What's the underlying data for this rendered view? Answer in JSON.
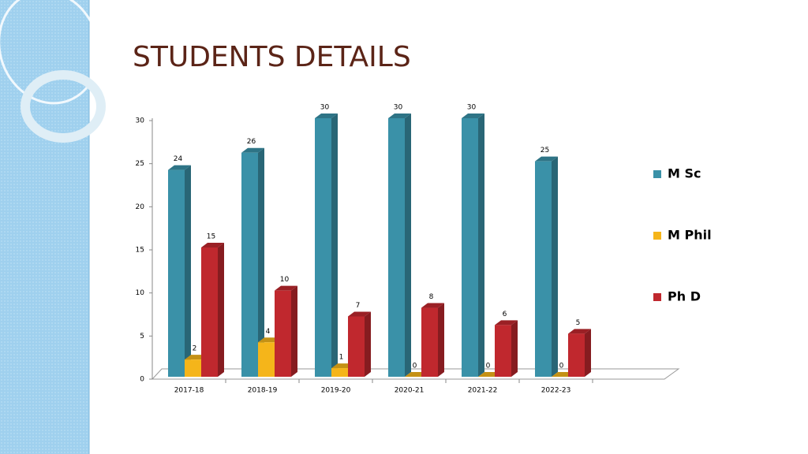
{
  "chart_data": {
    "type": "bar",
    "title": "STUDENTS DETAILS",
    "categories": [
      "2017-18",
      "2018-19",
      "2019-20",
      "2020-21",
      "2021-22",
      "2022-23"
    ],
    "series": [
      {
        "name": "M Sc",
        "color": "#3a91a8",
        "values": [
          24,
          26,
          30,
          30,
          30,
          25
        ]
      },
      {
        "name": "M Phil",
        "color": "#f5b51a",
        "values": [
          2,
          4,
          1,
          0,
          0,
          0
        ]
      },
      {
        "name": "Ph D",
        "color": "#c0282e",
        "values": [
          15,
          10,
          7,
          8,
          6,
          5
        ]
      }
    ],
    "ylim": [
      0,
      30
    ],
    "yticks": [
      0,
      5,
      10,
      15,
      20,
      25,
      30
    ]
  }
}
